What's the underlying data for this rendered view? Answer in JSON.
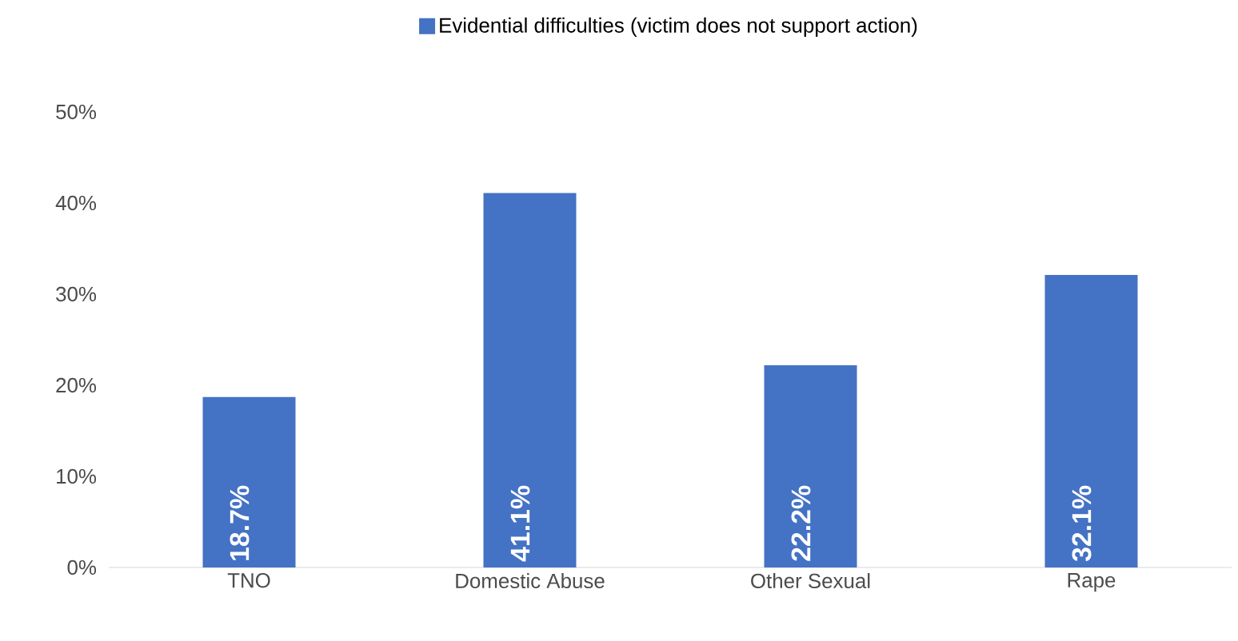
{
  "chart_data": {
    "type": "bar",
    "categories": [
      "TNO",
      "Domestic Abuse",
      "Other Sexual",
      "Rape"
    ],
    "series": [
      {
        "name": "Evidential difficulties (victim does not support action)",
        "color": "#4472c4",
        "values": [
          18.7,
          41.1,
          22.2,
          32.1
        ],
        "value_labels": [
          "18.7%",
          "41.1%",
          "22.2%",
          "32.1%"
        ]
      }
    ],
    "ylim": [
      0,
      50
    ],
    "yticks": [
      {
        "value": 0,
        "label": "0%"
      },
      {
        "value": 10,
        "label": "10%"
      },
      {
        "value": 20,
        "label": "20%"
      },
      {
        "value": 30,
        "label": "30%"
      },
      {
        "value": 40,
        "label": "40%"
      },
      {
        "value": 50,
        "label": "50%"
      }
    ],
    "legend": "top"
  }
}
